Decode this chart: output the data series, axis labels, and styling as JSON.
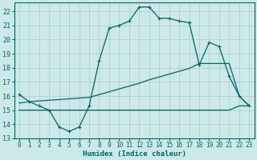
{
  "xlabel": "Humidex (Indice chaleur)",
  "bg_color": "#cce8e8",
  "grid_color": "#aacccc",
  "line_color": "#006666",
  "xlim": [
    -0.5,
    23.5
  ],
  "ylim": [
    13,
    22.6
  ],
  "yticks": [
    13,
    14,
    15,
    16,
    17,
    18,
    19,
    20,
    21,
    22
  ],
  "xticks": [
    0,
    1,
    2,
    3,
    4,
    5,
    6,
    7,
    8,
    9,
    10,
    11,
    12,
    13,
    14,
    15,
    16,
    17,
    18,
    19,
    20,
    21,
    22,
    23
  ],
  "curve1_x": [
    0,
    1,
    2,
    3,
    4,
    5,
    6,
    7,
    8,
    9,
    10,
    11,
    12,
    13,
    14,
    15,
    16,
    17,
    18,
    19,
    20,
    21,
    22,
    23
  ],
  "curve1_y": [
    16.1,
    15.6,
    15.3,
    15.0,
    13.8,
    13.5,
    13.8,
    15.3,
    18.5,
    20.8,
    21.0,
    21.3,
    22.3,
    22.3,
    21.5,
    21.5,
    21.3,
    21.2,
    18.2,
    19.8,
    19.5,
    17.4,
    16.0,
    15.3
  ],
  "curve2_x": [
    0,
    1,
    2,
    3,
    4,
    5,
    6,
    7,
    8,
    9,
    10,
    11,
    12,
    13,
    14,
    15,
    16,
    17,
    18,
    19,
    20,
    21,
    22,
    23
  ],
  "curve2_y": [
    15.0,
    15.0,
    15.0,
    15.0,
    15.0,
    15.0,
    15.0,
    15.0,
    15.0,
    15.0,
    15.0,
    15.0,
    15.0,
    15.0,
    15.0,
    15.0,
    15.0,
    15.0,
    15.0,
    15.0,
    15.0,
    15.0,
    15.3,
    15.3
  ],
  "curve3_x": [
    0,
    1,
    2,
    3,
    4,
    5,
    6,
    7,
    8,
    9,
    10,
    11,
    12,
    13,
    14,
    15,
    16,
    17,
    18,
    19,
    20,
    21,
    22,
    23
  ],
  "curve3_y": [
    15.5,
    15.6,
    15.65,
    15.7,
    15.75,
    15.8,
    15.85,
    15.9,
    16.1,
    16.3,
    16.5,
    16.7,
    16.9,
    17.15,
    17.35,
    17.55,
    17.75,
    17.95,
    18.3,
    18.3,
    18.3,
    18.3,
    16.0,
    15.3
  ]
}
